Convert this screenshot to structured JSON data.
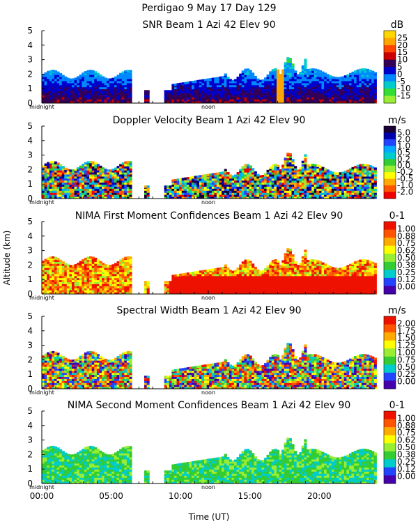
{
  "header": {
    "line1": "Perdigao   9 May 17 Day 129"
  },
  "chart_data": {
    "type": "heatmap",
    "ylabel": "Altitude (km)",
    "xlabel": "Time (UT)",
    "x_ticks": [
      "00:00",
      "05:00",
      "10:00",
      "15:00",
      "20:00"
    ],
    "x_tick_hours": [
      0,
      5,
      10,
      15,
      20
    ],
    "xlim_hours": [
      0,
      24
    ],
    "midnight_label": "midnight",
    "noon_label": "noon",
    "ylim_km": [
      0,
      5
    ],
    "y_ticks": [
      "0",
      "1",
      "2",
      "3",
      "4",
      "5"
    ],
    "panels": [
      {
        "title": "SNR Beam 1 Azi  42 Elev 90",
        "unit": "dB",
        "colorbar_labels": [
          "25",
          "20",
          "15",
          "10",
          "5",
          "0",
          "-5",
          "-10",
          "-15"
        ],
        "colors": [
          "#ffd700",
          "#ffa500",
          "#ff4500",
          "#cc0000",
          "#330055",
          "#0000cc",
          "#0088ff",
          "#00cccc",
          "#33dd33",
          "#99ee33"
        ]
      },
      {
        "title": "Doppler Velocity Beam 1 Azi  42 Elev 90",
        "unit": "m/s",
        "colorbar_labels": [
          "5.0",
          "2.0",
          "1.0",
          "0.5",
          "0.2",
          "0.0",
          "-0.2",
          "-0.5",
          "-1.0",
          "-2.0"
        ],
        "colors": [
          "#1a0033",
          "#0000aa",
          "#2244ff",
          "#00aaff",
          "#00cccc",
          "#33cc33",
          "#99ee33",
          "#ffff00",
          "#ffaa00",
          "#ff5500",
          "#ee0000"
        ]
      },
      {
        "title": "NIMA First Moment Confidences Beam 1 Azi  42 Elev 90",
        "unit": "0-1",
        "colorbar_labels": [
          "1.00",
          "0.88",
          "0.75",
          "0.62",
          "0.50",
          "0.38",
          "0.25",
          "0.12",
          "0.00"
        ],
        "colors": [
          "#ee1100",
          "#ff5500",
          "#ffaa00",
          "#ffff00",
          "#99ee33",
          "#33cc33",
          "#00cccc",
          "#2244ff",
          "#4400aa"
        ]
      },
      {
        "title": "Spectral Width Beam 1 Azi  42 Elev 90",
        "unit": "m/s",
        "colorbar_labels": [
          "2.00",
          "1.75",
          "1.50",
          "1.25",
          "1.00",
          "0.75",
          "0.50",
          "0.25",
          "0.00"
        ],
        "colors": [
          "#ee1100",
          "#ff5500",
          "#ffaa00",
          "#ffff00",
          "#99ee33",
          "#33cc33",
          "#00cccc",
          "#2244ff",
          "#4400aa"
        ]
      },
      {
        "title": "NIMA Second Moment Confidences Beam 1 Azi  42 Elev 90",
        "unit": "0-1",
        "colorbar_labels": [
          "1.00",
          "0.88",
          "0.75",
          "0.62",
          "0.50",
          "0.38",
          "0.25",
          "0.12",
          "0.00"
        ],
        "colors": [
          "#ee1100",
          "#ff5500",
          "#ffaa00",
          "#ffff00",
          "#99ee33",
          "#33cc33",
          "#00cccc",
          "#2244ff",
          "#4400aa"
        ]
      }
    ]
  }
}
